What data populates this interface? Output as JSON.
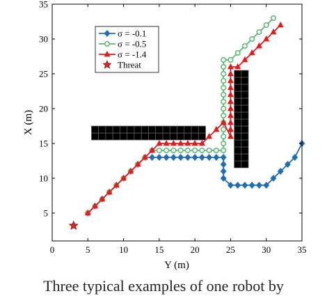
{
  "chart_data": {
    "type": "line",
    "xlabel": "Y (m)",
    "ylabel": "X (m)",
    "xlim": [
      0,
      35
    ],
    "ylim": [
      1,
      35
    ],
    "xticks": [
      0,
      5,
      10,
      15,
      20,
      25,
      30,
      35
    ],
    "yticks": [
      5,
      10,
      15,
      20,
      25,
      30,
      35
    ],
    "grid": false,
    "legend_position": "top-left",
    "series": [
      {
        "name": "σ = -0.1",
        "color": "#1f6db5",
        "marker": "diamond",
        "x": [
          5,
          6,
          7,
          8,
          9,
          10,
          11,
          12,
          13,
          14,
          15,
          16,
          17,
          18,
          19,
          20,
          21,
          22,
          23,
          24,
          24,
          24,
          24,
          25,
          26,
          27,
          28,
          29,
          30,
          31,
          32,
          33,
          34,
          35
        ],
        "y": [
          5,
          6,
          7,
          8,
          9,
          10,
          11,
          12,
          13,
          13,
          13,
          13,
          13,
          13,
          13,
          13,
          13,
          13,
          13,
          13,
          12,
          11,
          10,
          9,
          9,
          9,
          9,
          9,
          9,
          10,
          11,
          12,
          13,
          15
        ]
      },
      {
        "name": "σ = -0.5",
        "color": "#5bb873",
        "marker": "circle",
        "x": [
          5,
          6,
          7,
          8,
          9,
          10,
          11,
          12,
          13,
          14,
          15,
          16,
          17,
          18,
          19,
          20,
          21,
          22,
          23,
          24,
          24,
          24,
          24,
          24,
          24,
          24,
          24,
          24,
          24,
          24,
          24,
          24,
          24,
          25,
          26,
          27,
          28,
          29,
          30,
          31
        ],
        "y": [
          5,
          6,
          7,
          8,
          9,
          10,
          11,
          12,
          13,
          14,
          14,
          14,
          14,
          14,
          14,
          14,
          14,
          14,
          14,
          14,
          15,
          16,
          17,
          18,
          19,
          20,
          21,
          22,
          23,
          24,
          25,
          26,
          27,
          27,
          28,
          29,
          30,
          31,
          32,
          33
        ]
      },
      {
        "name": "σ = -1.4",
        "color": "#e41a1c",
        "marker": "triangle",
        "x": [
          5,
          6,
          7,
          8,
          9,
          10,
          11,
          12,
          13,
          14,
          15,
          16,
          17,
          18,
          19,
          20,
          21,
          22,
          23,
          24,
          25,
          25,
          25,
          25,
          25,
          25,
          25,
          25,
          25,
          25,
          25,
          26,
          27,
          28,
          29,
          30,
          31,
          32
        ],
        "y": [
          5,
          6,
          7,
          8,
          9,
          10,
          11,
          12,
          13,
          14,
          15,
          15,
          15,
          15,
          15,
          15,
          15,
          16,
          17,
          18,
          16,
          17,
          18,
          19,
          20,
          21,
          22,
          23,
          24,
          25,
          26,
          26,
          27,
          28,
          29,
          30,
          31,
          32
        ]
      }
    ],
    "threat": {
      "name": "Threat",
      "x": 3,
      "y": 3.2,
      "color": "#d62728",
      "marker": "star"
    },
    "obstacles": [
      {
        "x_range": [
          5.5,
          21.5
        ],
        "y_range": [
          15.5,
          17.5
        ]
      },
      {
        "x_range": [
          25.5,
          27.5
        ],
        "y_range": [
          11.5,
          25.5
        ]
      }
    ]
  },
  "caption": "Three typical examples of one robot by"
}
